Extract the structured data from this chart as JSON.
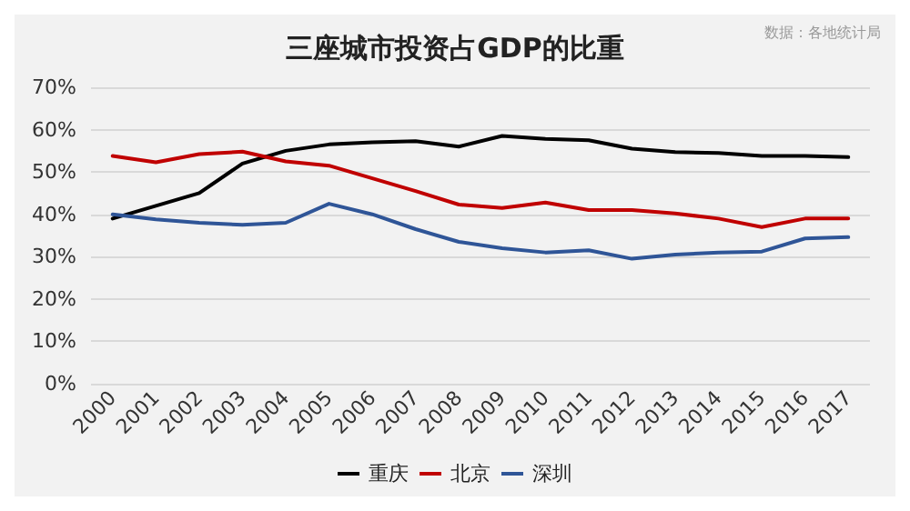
{
  "chart_data": {
    "type": "line",
    "title": "三座城市投资占GDP的比重",
    "annotations": [
      "数据：各地统计局"
    ],
    "categories": [
      "2000",
      "2001",
      "2002",
      "2003",
      "2004",
      "2005",
      "2006",
      "2007",
      "2008",
      "2009",
      "2010",
      "2011",
      "2012",
      "2013",
      "2014",
      "2015",
      "2016",
      "2017"
    ],
    "series": [
      {
        "name": "重庆",
        "color": "#000000",
        "values": [
          39,
          42,
          45,
          52,
          55,
          56.5,
          57,
          57.3,
          56,
          58.5,
          57.8,
          57.5,
          55.5,
          54.7,
          54.5,
          53.8,
          53.8,
          53.5
        ]
      },
      {
        "name": "北京",
        "color": "#c00000",
        "values": [
          53.8,
          52.3,
          54.2,
          54.8,
          52.5,
          51.5,
          48.5,
          45.5,
          42.3,
          41.5,
          42.8,
          41,
          41,
          40.2,
          39,
          37,
          39,
          39
        ]
      },
      {
        "name": "深圳",
        "color": "#2f5597",
        "values": [
          40,
          38.8,
          38,
          37.5,
          38,
          42.5,
          40,
          36.5,
          33.5,
          32,
          31,
          31.5,
          29.5,
          30.5,
          31,
          31.2,
          34.3,
          34.6
        ]
      }
    ],
    "ylim": [
      0,
      70
    ],
    "yticks": [
      {
        "value": 0,
        "label": "0%"
      },
      {
        "value": 10,
        "label": "10%"
      },
      {
        "value": 20,
        "label": "20%"
      },
      {
        "value": 30,
        "label": "30%"
      },
      {
        "value": 40,
        "label": "40%"
      },
      {
        "value": 50,
        "label": "50%"
      },
      {
        "value": 60,
        "label": "60%"
      },
      {
        "value": 70,
        "label": "70%"
      }
    ],
    "grid": "y",
    "legend": "bottom",
    "marker": "none",
    "line_style": "solid"
  }
}
